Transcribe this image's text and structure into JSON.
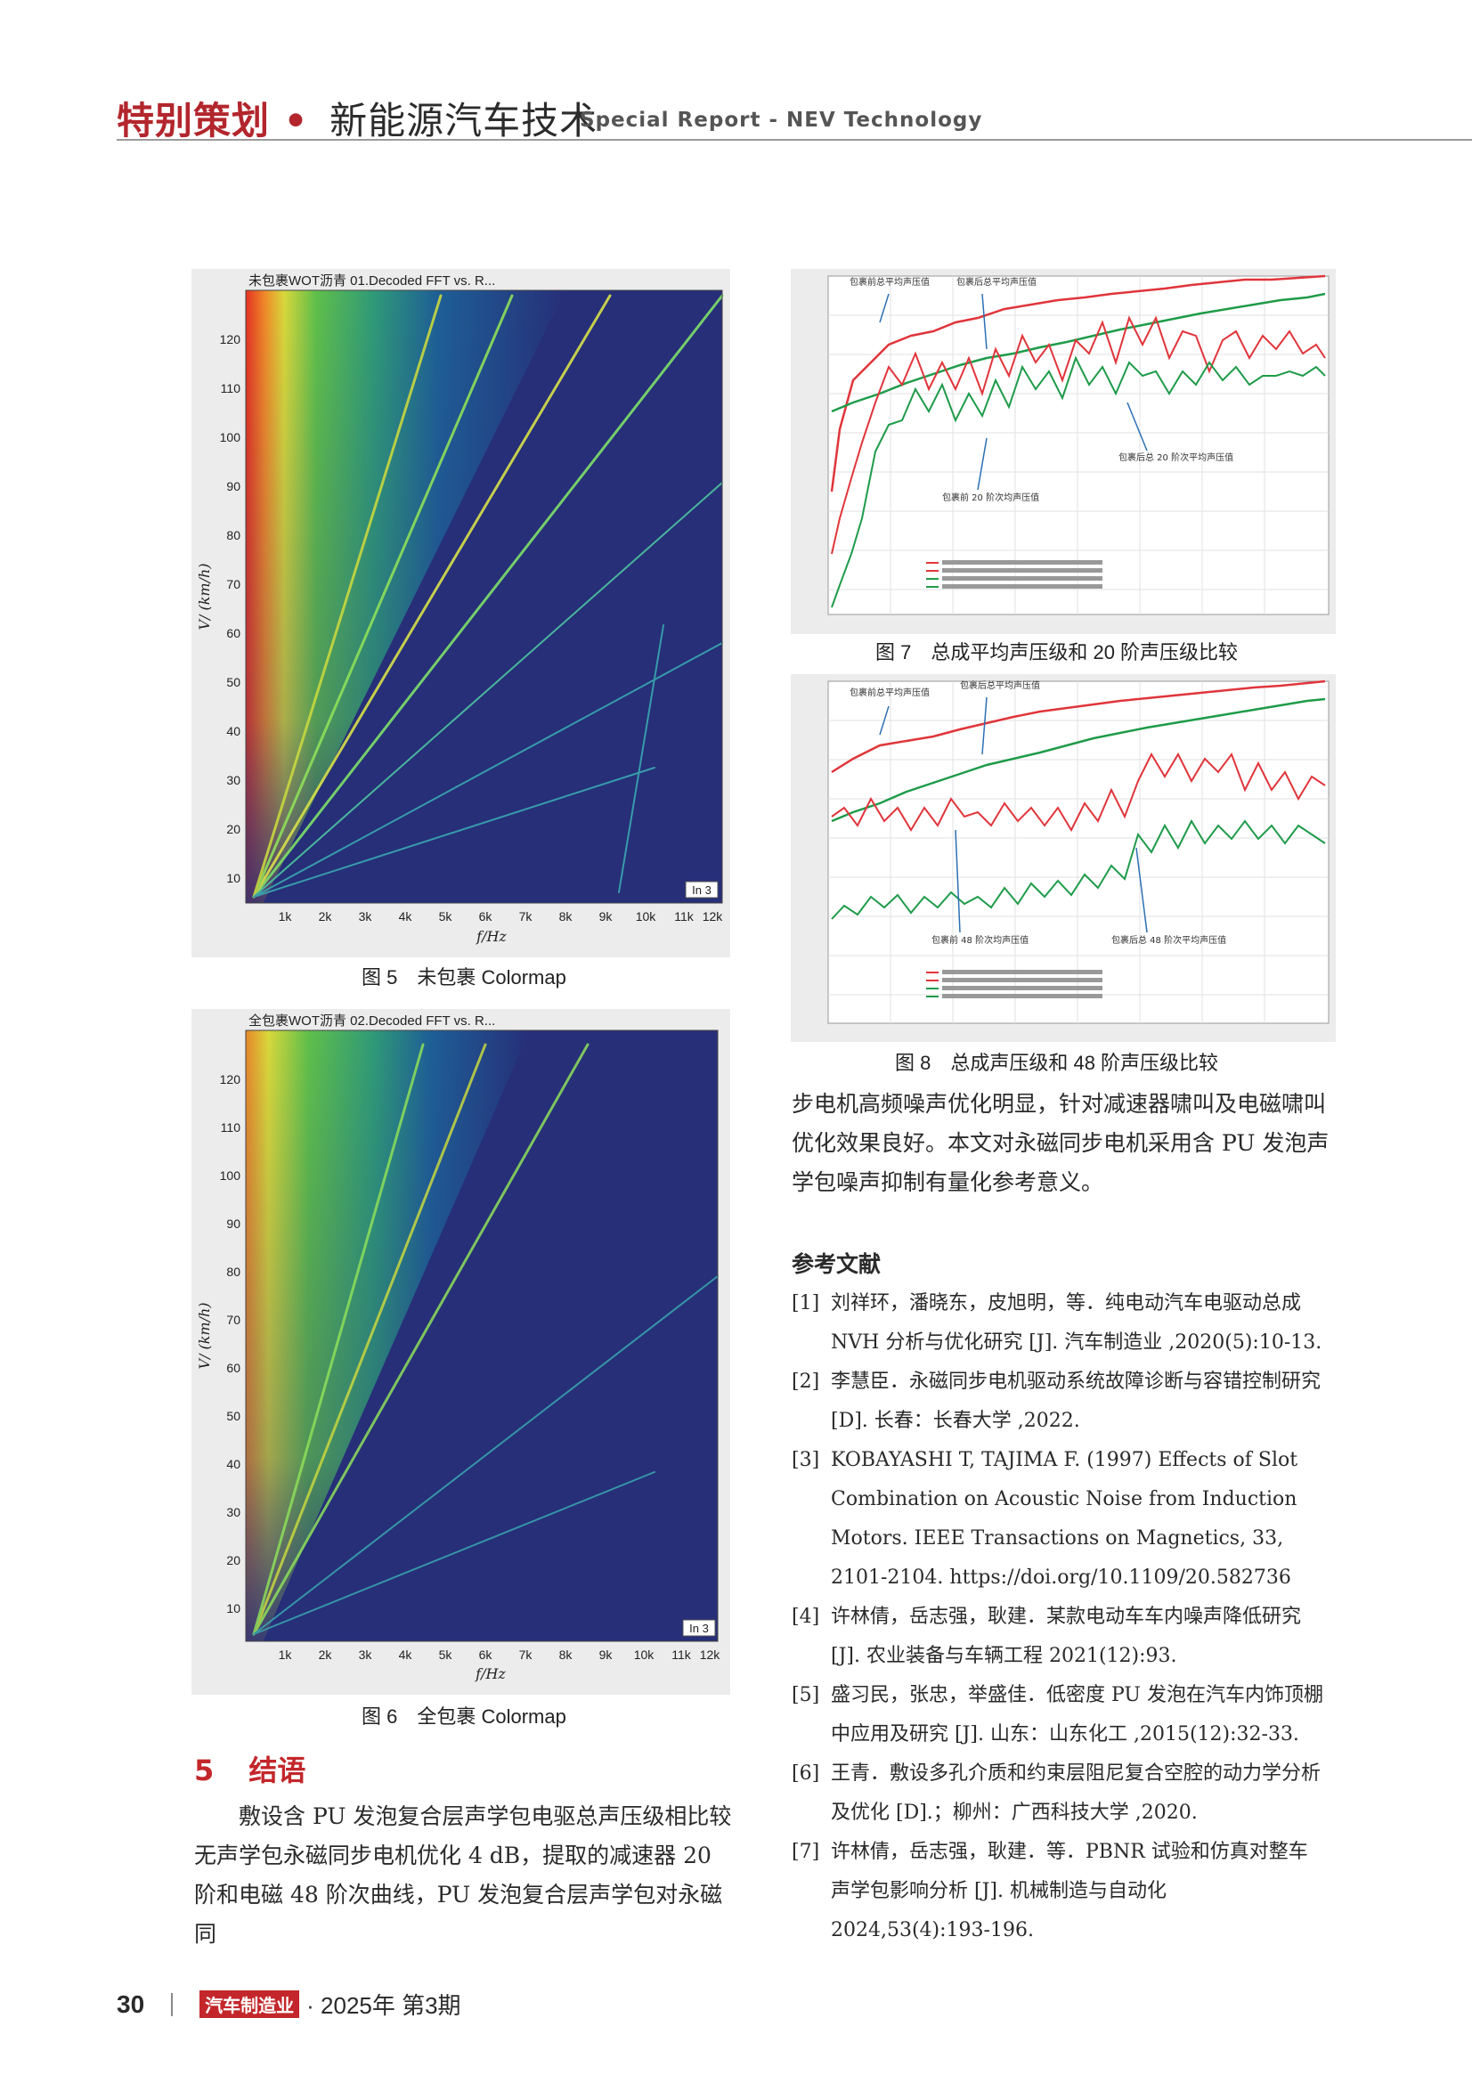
{
  "header": {
    "section_cn": "特别策划",
    "dot": "•",
    "topic_cn": "新能源汽车技术",
    "section_en": "Special Report - NEV Technology"
  },
  "fig5": {
    "chart_title": "未包裹WOT沥青 01.Decoded FFT vs. R...",
    "ylabel": "V/ (km/h)",
    "xlabel": "f/Hz",
    "yticks": [
      "120",
      "110",
      "100",
      "90",
      "80",
      "70",
      "60",
      "50",
      "40",
      "30",
      "20",
      "10"
    ],
    "xticks": [
      "1k",
      "2k",
      "3k",
      "4k",
      "5k",
      "6k",
      "7k",
      "8k",
      "9k",
      "10k",
      "11k",
      "12k"
    ],
    "badge": "In 3",
    "caption": "图 5　未包裹 Colormap"
  },
  "fig6": {
    "chart_title": "全包裹WOT沥青 02.Decoded FFT vs. R...",
    "ylabel": "V/ (km/h)",
    "xlabel": "f/Hz",
    "yticks": [
      "120",
      "110",
      "100",
      "90",
      "80",
      "70",
      "60",
      "50",
      "40",
      "30",
      "20",
      "10"
    ],
    "xticks": [
      "1k",
      "2k",
      "3k",
      "4k",
      "5k",
      "6k",
      "7k",
      "8k",
      "9k",
      "10k",
      "11k",
      "12k"
    ],
    "badge": "In 3",
    "caption": "图 6　全包裹 Colormap"
  },
  "fig7": {
    "caption": "图 7　总成平均声压级和 20 阶声压级比较",
    "ann_before_avg": "包裹前总平均声压值",
    "ann_after_avg": "包裹后总平均声压值",
    "ann_after_order": "包裹后总 20 阶次平均声压值",
    "ann_before_order": "包裹前 20 阶次均声压值",
    "colors": {
      "red": "#e0353b",
      "green": "#1f9b4a"
    }
  },
  "fig8": {
    "caption": "图 8　总成声压级和 48 阶声压级比较",
    "ann_before_avg": "包裹前总平均声压值",
    "ann_after_avg": "包裹后总平均声压值",
    "ann_before_order": "包裹前 48 阶次均声压值",
    "ann_after_order": "包裹后总 48 阶次平均声压值",
    "colors": {
      "red": "#e0353b",
      "green": "#1f9b4a"
    }
  },
  "right_para": "步电机高频噪声优化明显，针对减速器啸叫及电磁啸叫优化效果良好。本文对永磁同步电机采用含 PU 发泡声学包噪声抑制有量化参考意义。",
  "section5": {
    "num": "5",
    "title": "结语",
    "para": "敷设含 PU 发泡复合层声学包电驱总声压级相比较无声学包永磁同步电机优化 4 dB，提取的减速器 20 阶和电磁 48 阶次曲线，PU 发泡复合层声学包对永磁同"
  },
  "references": {
    "heading": "参考文献",
    "items": [
      {
        "n": "[1]",
        "t": "刘祥环，潘晓东，皮旭明，等．纯电动汽车电驱动总成 NVH 分析与优化研究 [J]. 汽车制造业 ,2020(5):10-13."
      },
      {
        "n": "[2]",
        "t": "李慧臣．永磁同步电机驱动系统故障诊断与容错控制研究 [D]. 长春：长春大学 ,2022."
      },
      {
        "n": "[3]",
        "t": "KOBAYASHI T, TAJIMA F. (1997) Effects of Slot Combination on Acoustic Noise from Induction Motors. IEEE Transactions on Magnetics, 33, 2101-2104. https://doi.org/10.1109/20.582736"
      },
      {
        "n": "[4]",
        "t": "许林倩，岳志强，耿建．某款电动车车内噪声降低研究 [J]. 农业装备与车辆工程 2021(12):93."
      },
      {
        "n": "[5]",
        "t": "盛习民，张忠，举盛佳．低密度 PU 发泡在汽车内饰顶棚中应用及研究 [J]. 山东：山东化工 ,2015(12):32-33."
      },
      {
        "n": "[6]",
        "t": "王青．敷设多孔介质和约束层阻尼复合空腔的动力学分析及优化 [D].；柳州：广西科技大学 ,2020."
      },
      {
        "n": "[7]",
        "t": "许林倩，岳志强，耿建．等．PBNR 试验和仿真对整车声学包影响分析 [J]. 机械制造与自动化 2024,53(4):193-196."
      }
    ]
  },
  "footer": {
    "page": "30",
    "magazine": "汽车制造业",
    "issue": "· 2025年  第3期"
  }
}
